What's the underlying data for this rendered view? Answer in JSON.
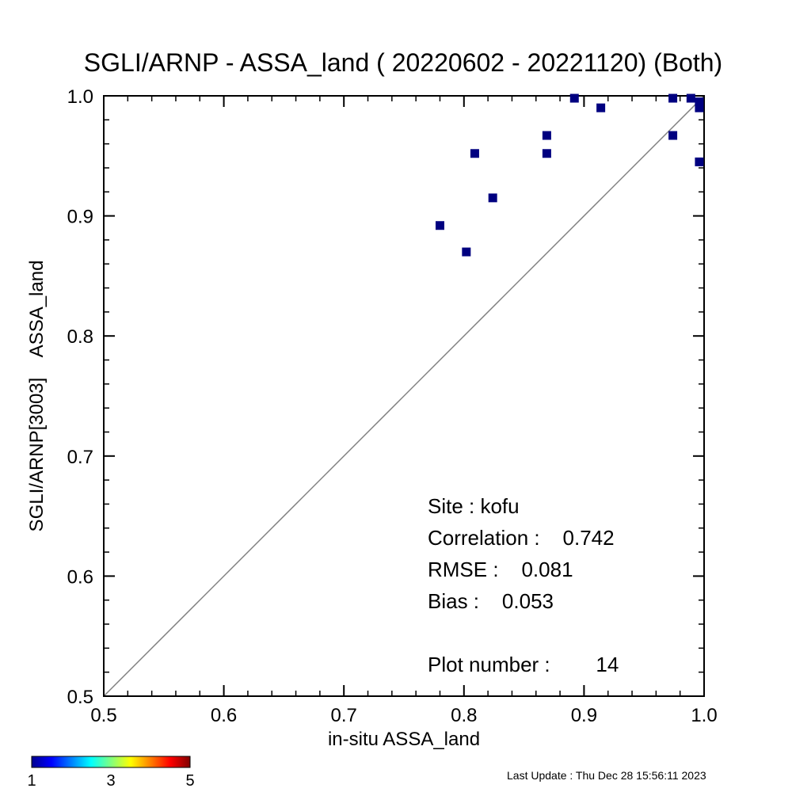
{
  "chart_data": {
    "type": "scatter",
    "title": "SGLI/ARNP - ASSA_land ( 20220602 - 20221120) (Both)",
    "xlabel": "in-situ ASSA_land",
    "ylabel": "SGLI/ARNP[3003]    ASSA_land",
    "xlim": [
      0.5,
      1.0
    ],
    "ylim": [
      0.5,
      1.0
    ],
    "x_ticks": [
      "0.5",
      "0.6",
      "0.7",
      "0.8",
      "0.9",
      "1.0"
    ],
    "y_ticks": [
      "0.5",
      "0.6",
      "0.7",
      "0.8",
      "0.9",
      "1.0"
    ],
    "reference_line": "1:1",
    "grid": false,
    "marker_color": "#000080",
    "points": [
      {
        "x": 0.78,
        "y": 0.892
      },
      {
        "x": 0.802,
        "y": 0.87
      },
      {
        "x": 0.809,
        "y": 0.952
      },
      {
        "x": 0.824,
        "y": 0.915
      },
      {
        "x": 0.869,
        "y": 0.967
      },
      {
        "x": 0.869,
        "y": 0.952
      },
      {
        "x": 0.892,
        "y": 0.998
      },
      {
        "x": 0.914,
        "y": 0.99
      },
      {
        "x": 0.974,
        "y": 0.998
      },
      {
        "x": 0.974,
        "y": 0.967
      },
      {
        "x": 0.989,
        "y": 0.998
      },
      {
        "x": 0.996,
        "y": 0.995
      },
      {
        "x": 0.996,
        "y": 0.99
      },
      {
        "x": 0.996,
        "y": 0.945
      }
    ],
    "stats": {
      "site": "Site : kofu",
      "correlation": "Correlation :    0.742",
      "rmse": "RMSE :    0.081",
      "bias": "Bias :    0.053",
      "plot_number": "Plot number :        14"
    },
    "colorbar": {
      "range": [
        1,
        5
      ],
      "labels": [
        "1",
        "3",
        "5"
      ],
      "colormap": "jet"
    },
    "footer": "Last Update : Thu Dec 28 15:56:11 2023"
  }
}
